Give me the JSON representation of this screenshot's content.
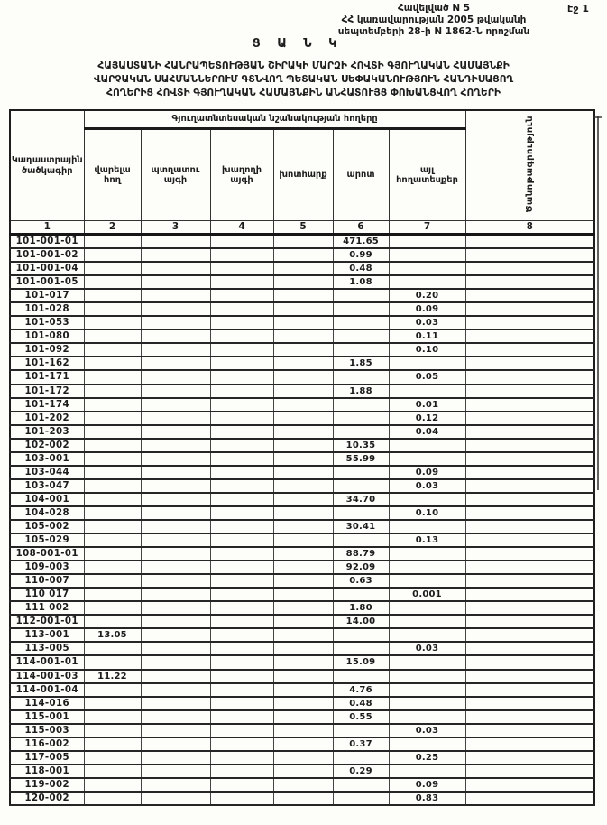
{
  "page": {
    "page_number_label": "էջ 1",
    "appendix_lines": [
      "Հավելված N 5",
      "ՀՀ կառավարության 2005 թվականի",
      "սեպտեմբերի 28-ի N 1862-Ն որոշման"
    ],
    "doc_type": "Ց Ա Ն Կ",
    "title_lines": [
      "ՀԱՅԱՍՏԱՆԻ ՀԱՆՐԱՊԵՏՈՒԹՅԱՆ ՇԻՐԱԿԻ ՄԱՐԶԻ ՀՈՎՏԻ  ԳՅՈՒՂԱԿԱՆ ՀԱՄԱՅՆՔԻ",
      "ՎԱՐՉԱԿԱՆ ՍԱՀՄԱՆՆԵՐՈՒՄ ԳՏՆՎՈՂ  ՊԵՏԱԿԱՆ ՍԵՓԱԿԱՆՈՒԹՅՈՒՆ ՀԱՆԴԻՍԱՑՈՂ",
      "ՀՈՂԵՐԻՑ  ՀՈՎՏԻ  ԳՅՈՒՂԱԿԱՆ ՀԱՄԱՅՆՔԻՆ ԱՆՀԱՏՈՒՅՑ ՓՈԽԱՆՑՎՈՂ  ՀՈՂԵՐԻ"
    ]
  },
  "table": {
    "header": {
      "cadastral_code": "Կադաստրային ծածկագիր",
      "group": "Գյուղատնտեսական նշանակության հողերը",
      "columns": [
        "վարելա հող",
        "պտղատու այգի",
        "խաղողի այգի",
        "խոտհարք",
        "արոտ",
        "այլ հողատեսքեր"
      ],
      "note": "Ծանոթագրություն",
      "numbers": [
        "1",
        "2",
        "3",
        "4",
        "5",
        "6",
        "7",
        "8"
      ]
    },
    "rows": [
      {
        "code": "101-001-01",
        "values": [
          "",
          "",
          "",
          "",
          "471.65",
          ""
        ],
        "note": ""
      },
      {
        "code": "101-001-02",
        "values": [
          "",
          "",
          "",
          "",
          "0.99",
          ""
        ],
        "note": ""
      },
      {
        "code": "101-001-04",
        "values": [
          "",
          "",
          "",
          "",
          "0.48",
          ""
        ],
        "note": ""
      },
      {
        "code": "101-001-05",
        "values": [
          "",
          "",
          "",
          "",
          "1.08",
          ""
        ],
        "note": ""
      },
      {
        "code": "101-017",
        "values": [
          "",
          "",
          "",
          "",
          "",
          "0.20"
        ],
        "note": ""
      },
      {
        "code": "101-028",
        "values": [
          "",
          "",
          "",
          "",
          "",
          "0.09"
        ],
        "note": ""
      },
      {
        "code": "101-053",
        "values": [
          "",
          "",
          "",
          "",
          "",
          "0.03"
        ],
        "note": ""
      },
      {
        "code": "101-080",
        "values": [
          "",
          "",
          "",
          "",
          "",
          "0.11"
        ],
        "note": ""
      },
      {
        "code": "101-092",
        "values": [
          "",
          "",
          "",
          "",
          "",
          "0.10"
        ],
        "note": ""
      },
      {
        "code": "101-162",
        "values": [
          "",
          "",
          "",
          "",
          "1.85",
          ""
        ],
        "note": ""
      },
      {
        "code": "101-171",
        "values": [
          "",
          "",
          "",
          "",
          "",
          "0.05"
        ],
        "note": ""
      },
      {
        "code": "101-172",
        "values": [
          "",
          "",
          "",
          "",
          "1.88",
          ""
        ],
        "note": ""
      },
      {
        "code": "101-174",
        "values": [
          "",
          "",
          "",
          "",
          "",
          "0.01"
        ],
        "note": ""
      },
      {
        "code": "101-202",
        "values": [
          "",
          "",
          "",
          "",
          "",
          "0.12"
        ],
        "note": ""
      },
      {
        "code": "101-203",
        "values": [
          "",
          "",
          "",
          "",
          "",
          "0.04"
        ],
        "note": ""
      },
      {
        "code": "102-002",
        "values": [
          "",
          "",
          "",
          "",
          "10.35",
          ""
        ],
        "note": ""
      },
      {
        "code": "103-001",
        "values": [
          "",
          "",
          "",
          "",
          "55.99",
          ""
        ],
        "note": ""
      },
      {
        "code": "103-044",
        "values": [
          "",
          "",
          "",
          "",
          "",
          "0.09"
        ],
        "note": ""
      },
      {
        "code": "103-047",
        "values": [
          "",
          "",
          "",
          "",
          "",
          "0.03"
        ],
        "note": ""
      },
      {
        "code": "104-001",
        "values": [
          "",
          "",
          "",
          "",
          "34.70",
          ""
        ],
        "note": ""
      },
      {
        "code": "104-028",
        "values": [
          "",
          "",
          "",
          "",
          "",
          "0.10"
        ],
        "note": ""
      },
      {
        "code": "105-002",
        "values": [
          "",
          "",
          "",
          "",
          "30.41",
          ""
        ],
        "note": ""
      },
      {
        "code": "105-029",
        "values": [
          "",
          "",
          "",
          "",
          "",
          "0.13"
        ],
        "note": ""
      },
      {
        "code": "108-001-01",
        "values": [
          "",
          "",
          "",
          "",
          "88.79",
          ""
        ],
        "note": ""
      },
      {
        "code": "109-003",
        "values": [
          "",
          "",
          "",
          "",
          "92.09",
          ""
        ],
        "note": ""
      },
      {
        "code": "110-007",
        "values": [
          "",
          "",
          "",
          "",
          "0.63",
          ""
        ],
        "note": ""
      },
      {
        "code": "110 017",
        "values": [
          "",
          "",
          "",
          "",
          "",
          "0.001"
        ],
        "note": ""
      },
      {
        "code": "111 002",
        "values": [
          "",
          "",
          "",
          "",
          "1.80",
          ""
        ],
        "note": ""
      },
      {
        "code": "112-001-01",
        "values": [
          "",
          "",
          "",
          "",
          "14.00",
          ""
        ],
        "note": ""
      },
      {
        "code": "113-001",
        "values": [
          "13.05",
          "",
          "",
          "",
          "",
          ""
        ],
        "note": ""
      },
      {
        "code": "113-005",
        "values": [
          "",
          "",
          "",
          "",
          "",
          "0.03"
        ],
        "note": ""
      },
      {
        "code": "114-001-01",
        "values": [
          "",
          "",
          "",
          "",
          "15.09",
          ""
        ],
        "note": ""
      },
      {
        "code": "114-001-03",
        "values": [
          "11.22",
          "",
          "",
          "",
          "",
          ""
        ],
        "note": ""
      },
      {
        "code": "114-001-04",
        "values": [
          "",
          "",
          "",
          "",
          "4.76",
          ""
        ],
        "note": ""
      },
      {
        "code": "114-016",
        "values": [
          "",
          "",
          "",
          "",
          "0.48",
          ""
        ],
        "note": ""
      },
      {
        "code": "115-001",
        "values": [
          "",
          "",
          "",
          "",
          "0.55",
          ""
        ],
        "note": ""
      },
      {
        "code": "115-003",
        "values": [
          "",
          "",
          "",
          "",
          "",
          "0.03"
        ],
        "note": ""
      },
      {
        "code": "116-002",
        "values": [
          "",
          "",
          "",
          "",
          "0.37",
          ""
        ],
        "note": ""
      },
      {
        "code": "117-005",
        "values": [
          "",
          "",
          "",
          "",
          "",
          "0.25"
        ],
        "note": ""
      },
      {
        "code": "118-001",
        "values": [
          "",
          "",
          "",
          "",
          "0.29",
          ""
        ],
        "note": ""
      },
      {
        "code": "119-002",
        "values": [
          "",
          "",
          "",
          "",
          "",
          "0.09"
        ],
        "note": ""
      },
      {
        "code": "120-002",
        "values": [
          "",
          "",
          "",
          "",
          "",
          "0.83"
        ],
        "note": ""
      }
    ]
  }
}
